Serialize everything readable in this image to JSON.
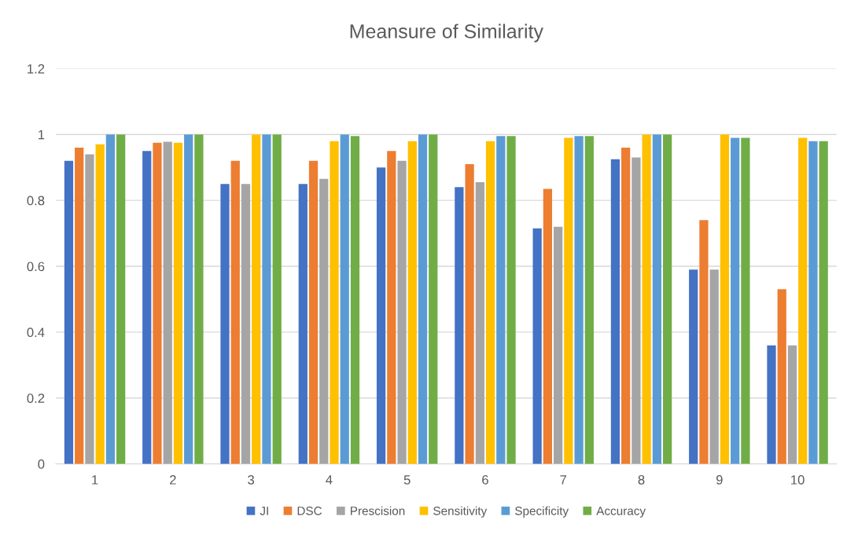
{
  "chart_data": {
    "type": "bar",
    "title": "Meansure of Similarity",
    "categories": [
      "1",
      "2",
      "3",
      "4",
      "5",
      "6",
      "7",
      "8",
      "9",
      "10"
    ],
    "series": [
      {
        "name": "JI",
        "color": "#4472c4",
        "values": [
          0.92,
          0.95,
          0.85,
          0.85,
          0.9,
          0.84,
          0.715,
          0.925,
          0.59,
          0.36
        ]
      },
      {
        "name": "DSC",
        "color": "#ed7d31",
        "values": [
          0.96,
          0.975,
          0.92,
          0.92,
          0.95,
          0.91,
          0.835,
          0.96,
          0.74,
          0.53
        ]
      },
      {
        "name": "Prescision",
        "color": "#a5a5a5",
        "values": [
          0.94,
          0.978,
          0.85,
          0.865,
          0.92,
          0.855,
          0.72,
          0.93,
          0.59,
          0.36
        ]
      },
      {
        "name": "Sensitivity",
        "color": "#ffc000",
        "values": [
          0.97,
          0.975,
          1.0,
          0.98,
          0.98,
          0.98,
          0.99,
          1.0,
          1.0,
          0.99
        ]
      },
      {
        "name": "Specificity",
        "color": "#5b9bd5",
        "values": [
          1.0,
          1.0,
          1.0,
          1.0,
          1.0,
          0.995,
          0.995,
          1.0,
          0.99,
          0.98
        ]
      },
      {
        "name": "Accuracy",
        "color": "#70ad47",
        "values": [
          1.0,
          1.0,
          1.0,
          0.995,
          1.0,
          0.995,
          0.995,
          1.0,
          0.99,
          0.98
        ]
      }
    ],
    "ylim": [
      0,
      1.2
    ],
    "yticks": [
      0,
      0.2,
      0.4,
      0.6,
      0.8,
      1,
      1.2
    ],
    "grid": "y",
    "legend": "bottom"
  }
}
